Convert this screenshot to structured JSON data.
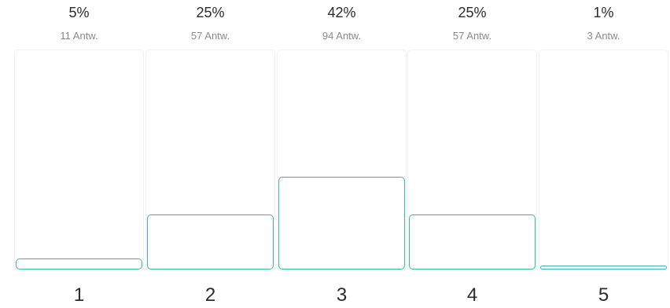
{
  "options": [
    {
      "label": "1",
      "percent_text": "5%",
      "count_text": "11 Antw.",
      "percent": 5
    },
    {
      "label": "2",
      "percent_text": "25%",
      "count_text": "57 Antw.",
      "percent": 25
    },
    {
      "label": "3",
      "percent_text": "42%",
      "count_text": "94 Antw.",
      "percent": 42
    },
    {
      "label": "4",
      "percent_text": "25%",
      "count_text": "57 Antw.",
      "percent": 25
    },
    {
      "label": "5",
      "percent_text": "1%",
      "count_text": "3 Antw.",
      "percent": 1
    }
  ],
  "colors": {
    "bar_outline": "#3fb1a8",
    "track_border": "#f1f3f3",
    "text_primary": "#2b2b2b",
    "text_secondary": "#8a8a8a"
  }
}
